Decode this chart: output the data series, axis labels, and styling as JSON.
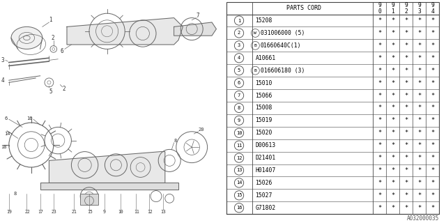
{
  "bg_color": "#ffffff",
  "header_label": "PARTS CORD",
  "year_headers": [
    "9\n0",
    "9\n1",
    "9\n2",
    "9\n3",
    "9\n4"
  ],
  "rows": [
    [
      "1",
      "15208"
    ],
    [
      "2",
      "(W)031006000 (5)"
    ],
    [
      "3",
      "(B)01660640C(1)"
    ],
    [
      "4",
      "A10661"
    ],
    [
      "5",
      "(B)016606180 (3)"
    ],
    [
      "6",
      "15010"
    ],
    [
      "7",
      "15066"
    ],
    [
      "8",
      "15008"
    ],
    [
      "9",
      "15019"
    ],
    [
      "10",
      "15020"
    ],
    [
      "11",
      "D00613"
    ],
    [
      "12",
      "D21401"
    ],
    [
      "13",
      "H01407"
    ],
    [
      "14",
      "15026"
    ],
    [
      "15",
      "15027"
    ],
    [
      "16",
      "G71802"
    ]
  ],
  "special_rows": {
    "2": "W",
    "3": "B",
    "5": "B"
  },
  "footer_text": "A032000035",
  "line_color": "#888888",
  "text_color": "#000000",
  "table_font_size": 5.8,
  "diagram_line_color": "#666666",
  "diagram_text_color": "#333333",
  "diagram_fs": 5.0
}
